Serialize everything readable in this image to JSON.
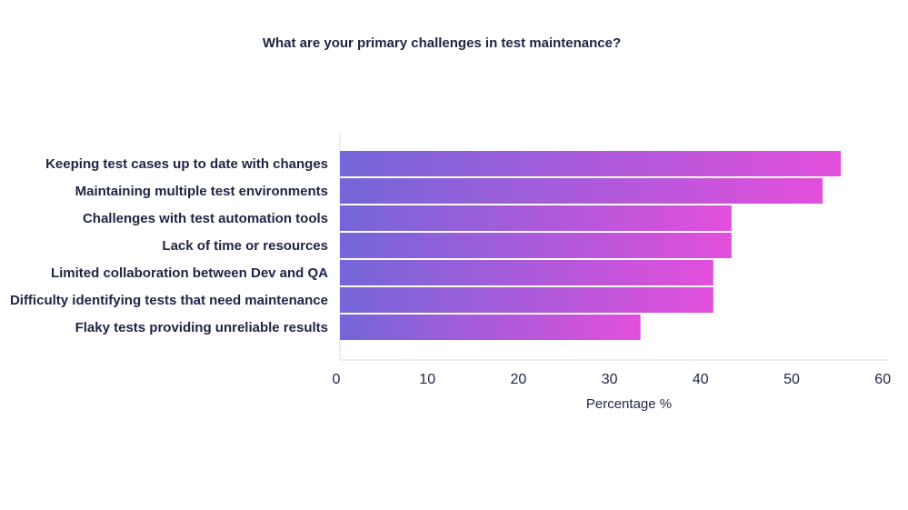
{
  "chart_data": {
    "type": "bar",
    "orientation": "horizontal",
    "title": "What are your primary challenges in test maintenance?",
    "xlabel": "Percentage %",
    "ylabel": "",
    "categories": [
      "Keeping test cases up to date with changes",
      "Maintaining multiple test environments",
      "Challenges with test automation tools",
      "Lack of time or resources",
      "Limited collaboration between Dev and QA",
      "Difficulty identifying tests that need maintenance",
      "Flaky tests providing unreliable results"
    ],
    "values": [
      55,
      53,
      43,
      43,
      41,
      41,
      33
    ],
    "xlim": [
      0,
      60
    ],
    "xticks": [
      "0",
      "10",
      "20",
      "30",
      "40",
      "50",
      "60"
    ],
    "grid": false,
    "legend": "none",
    "colors": {
      "bar_gradient_start": "#7366d8",
      "bar_gradient_end": "#e24fdc",
      "axis_line": "#dcdcea",
      "text": "#1f2444"
    }
  }
}
